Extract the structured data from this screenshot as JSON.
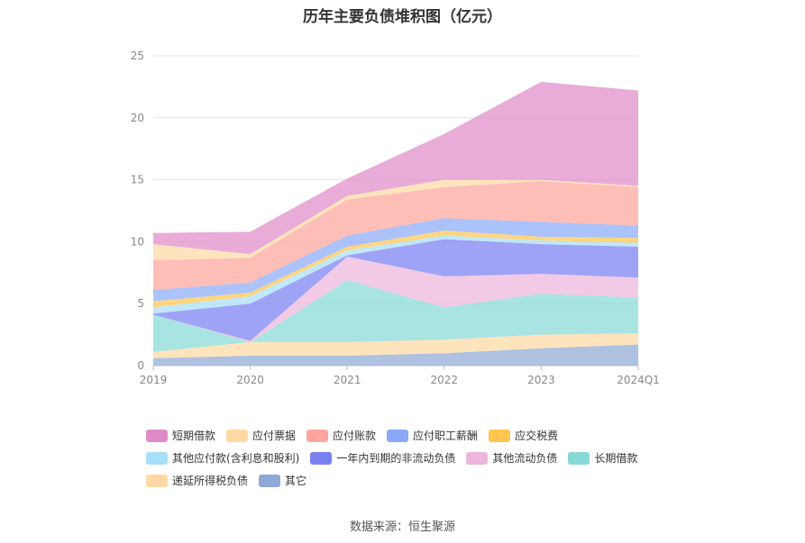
{
  "title": "历年主要负债堆积图（亿元）",
  "source": "数据来源：恒生聚源",
  "chart_data": {
    "type": "area",
    "stacked": true,
    "categories": [
      "2019",
      "2020",
      "2021",
      "2022",
      "2023",
      "2024Q1"
    ],
    "ylim": [
      0,
      25
    ],
    "yticks": [
      0,
      5,
      10,
      15,
      20,
      25
    ],
    "grid": true,
    "legend_position": "bottom",
    "series": [
      {
        "name": "其它",
        "color": "#8fa9d6",
        "values": [
          0.6,
          0.8,
          0.8,
          1.0,
          1.4,
          1.7
        ]
      },
      {
        "name": "递延所得税负债",
        "color": "#fed9a4",
        "values": [
          0.5,
          1.1,
          1.1,
          1.1,
          1.1,
          0.9
        ]
      },
      {
        "name": "长期借款",
        "color": "#86d9d6",
        "values": [
          3.0,
          0.0,
          5.0,
          2.6,
          3.3,
          2.9
        ]
      },
      {
        "name": "其他流动负债",
        "color": "#edb5dc",
        "values": [
          0.0,
          0.1,
          1.9,
          2.5,
          1.6,
          1.6
        ]
      },
      {
        "name": "一年内到期的非流动负债",
        "color": "#7a80f2",
        "values": [
          0.1,
          3.0,
          0.1,
          3.0,
          2.4,
          2.5
        ]
      },
      {
        "name": "其他应付款(含利息和股利)",
        "color": "#a7dff8",
        "values": [
          0.5,
          0.6,
          0.4,
          0.3,
          0.3,
          0.3
        ]
      },
      {
        "name": "应交税费",
        "color": "#fec64f",
        "values": [
          0.5,
          0.3,
          0.3,
          0.4,
          0.3,
          0.4
        ]
      },
      {
        "name": "应付职工薪酬",
        "color": "#8aaaf9",
        "values": [
          0.9,
          0.8,
          0.9,
          1.0,
          1.2,
          1.0
        ]
      },
      {
        "name": "应付账款",
        "color": "#fca59d",
        "values": [
          2.4,
          2.0,
          2.9,
          2.5,
          3.3,
          3.1
        ]
      },
      {
        "name": "应付票据",
        "color": "#fed9a4",
        "values": [
          1.3,
          0.3,
          0.3,
          0.6,
          0.1,
          0.1
        ]
      },
      {
        "name": "短期借款",
        "color": "#e08ac8",
        "values": [
          0.9,
          1.8,
          1.4,
          3.7,
          7.9,
          7.7
        ]
      }
    ],
    "legend": [
      {
        "name": "短期借款",
        "color": "#e08ac8"
      },
      {
        "name": "应付票据",
        "color": "#fed9a4"
      },
      {
        "name": "应付账款",
        "color": "#fca59d"
      },
      {
        "name": "应付职工薪酬",
        "color": "#8aaaf9"
      },
      {
        "name": "应交税费",
        "color": "#fec64f"
      },
      {
        "name": "其他应付款(含利息和股利)",
        "color": "#a7dff8"
      },
      {
        "name": "一年内到期的非流动负债",
        "color": "#7a80f2"
      },
      {
        "name": "其他流动负债",
        "color": "#edb5dc"
      },
      {
        "name": "长期借款",
        "color": "#86d9d6"
      },
      {
        "name": "递延所得税负债",
        "color": "#fed9a4"
      },
      {
        "name": "其它",
        "color": "#8fa9d6"
      }
    ]
  }
}
